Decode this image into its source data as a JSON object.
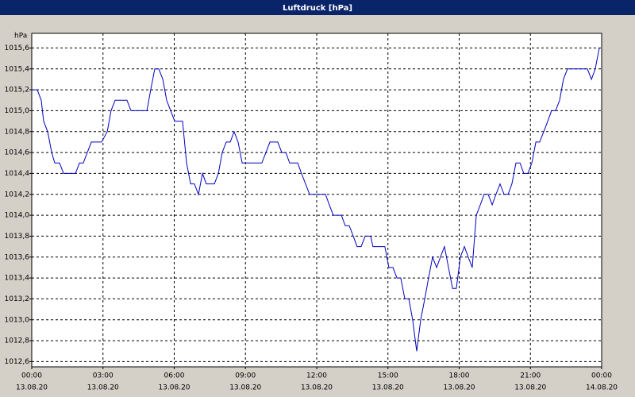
{
  "chart_data": {
    "type": "line",
    "title": "Luftdruck [hPa]",
    "y_label": "hPa",
    "x": [
      0,
      0.23,
      0.4,
      0.5,
      0.67,
      0.84,
      0.97,
      1.17,
      1.34,
      1.84,
      2.01,
      2.17,
      2.34,
      2.51,
      2.94,
      3.18,
      3.34,
      3.51,
      4.01,
      4.18,
      4.85,
      5.01,
      5.18,
      5.35,
      5.52,
      5.68,
      5.85,
      6.02,
      6.35,
      6.52,
      6.69,
      6.85,
      7.02,
      7.19,
      7.35,
      7.69,
      7.86,
      8.02,
      8.19,
      8.36,
      8.52,
      8.69,
      8.86,
      9.69,
      9.86,
      10.03,
      10.36,
      10.53,
      10.7,
      10.86,
      11.2,
      11.36,
      11.53,
      11.7,
      12.37,
      12.53,
      12.7,
      13.04,
      13.2,
      13.37,
      13.54,
      13.7,
      13.87,
      14.04,
      14.27,
      14.37,
      14.87,
      15.04,
      15.21,
      15.38,
      15.54,
      15.71,
      15.88,
      16.04,
      16.21,
      16.38,
      16.55,
      16.71,
      16.88,
      17.05,
      17.21,
      17.38,
      17.55,
      17.72,
      17.88,
      18.05,
      18.22,
      18.38,
      18.55,
      18.72,
      18.89,
      19.05,
      19.22,
      19.39,
      19.55,
      19.72,
      19.89,
      20.06,
      20.22,
      20.39,
      20.56,
      20.72,
      20.89,
      21.06,
      21.23,
      21.39,
      21.56,
      21.73,
      21.89,
      22.06,
      22.23,
      22.39,
      22.56,
      23.4,
      23.57,
      23.73,
      23.9
    ],
    "series": [
      {
        "name": "Luftdruck",
        "color": "#0000c0",
        "values": [
          1015.2,
          1015.2,
          1015.1,
          1014.9,
          1014.8,
          1014.6,
          1014.5,
          1014.5,
          1014.4,
          1014.4,
          1014.5,
          1014.5,
          1014.6,
          1014.7,
          1014.7,
          1014.8,
          1015.0,
          1015.1,
          1015.1,
          1015.0,
          1015.0,
          1015.2,
          1015.4,
          1015.4,
          1015.3,
          1015.1,
          1015.0,
          1014.9,
          1014.9,
          1014.5,
          1014.3,
          1014.3,
          1014.2,
          1014.4,
          1014.3,
          1014.3,
          1014.4,
          1014.6,
          1014.7,
          1014.7,
          1014.8,
          1014.7,
          1014.5,
          1014.5,
          1014.6,
          1014.7,
          1014.7,
          1014.6,
          1014.6,
          1014.5,
          1014.5,
          1014.4,
          1014.3,
          1014.2,
          1014.2,
          1014.1,
          1014.0,
          1014.0,
          1013.9,
          1013.9,
          1013.8,
          1013.7,
          1013.7,
          1013.8,
          1013.8,
          1013.7,
          1013.7,
          1013.5,
          1013.5,
          1013.4,
          1013.4,
          1013.2,
          1013.2,
          1013.0,
          1012.7,
          1013.0,
          1013.2,
          1013.4,
          1013.6,
          1013.5,
          1013.6,
          1013.7,
          1013.5,
          1013.3,
          1013.3,
          1013.6,
          1013.7,
          1013.6,
          1013.5,
          1014.0,
          1014.1,
          1014.2,
          1014.2,
          1014.1,
          1014.2,
          1014.3,
          1014.2,
          1014.2,
          1014.3,
          1014.5,
          1014.5,
          1014.4,
          1014.4,
          1014.5,
          1014.7,
          1014.7,
          1014.8,
          1014.9,
          1015.0,
          1015.0,
          1015.1,
          1015.3,
          1015.4,
          1015.4,
          1015.3,
          1015.4,
          1015.6
        ]
      }
    ],
    "xlim": [
      0,
      24
    ],
    "xticks": [
      {
        "value": 0,
        "label": "00:00"
      },
      {
        "value": 3,
        "label": "03:00"
      },
      {
        "value": 6,
        "label": "06:00"
      },
      {
        "value": 9,
        "label": "09:00"
      },
      {
        "value": 12,
        "label": "12:00"
      },
      {
        "value": 15,
        "label": "15:00"
      },
      {
        "value": 18,
        "label": "18:00"
      },
      {
        "value": 21,
        "label": "21:00"
      },
      {
        "value": 24,
        "label": "00:00"
      }
    ],
    "xtick_dates": [
      "13.08.20",
      "13.08.20",
      "13.08.20",
      "13.08.20",
      "13.08.20",
      "13.08.20",
      "13.08.20",
      "13.08.20",
      "14.08.20"
    ],
    "ylim": [
      1012.55,
      1015.74
    ],
    "yticks": [
      {
        "value": 1012.6,
        "label": "1012,6"
      },
      {
        "value": 1012.8,
        "label": "1012,8"
      },
      {
        "value": 1013.0,
        "label": "1013,0"
      },
      {
        "value": 1013.2,
        "label": "1013,2"
      },
      {
        "value": 1013.4,
        "label": "1013,4"
      },
      {
        "value": 1013.6,
        "label": "1013,6"
      },
      {
        "value": 1013.8,
        "label": "1013,8"
      },
      {
        "value": 1014.0,
        "label": "1014,0"
      },
      {
        "value": 1014.2,
        "label": "1014,2"
      },
      {
        "value": 1014.4,
        "label": "1014,4"
      },
      {
        "value": 1014.6,
        "label": "1014,6"
      },
      {
        "value": 1014.8,
        "label": "1014,8"
      },
      {
        "value": 1015.0,
        "label": "1015,0"
      },
      {
        "value": 1015.2,
        "label": "1015,2"
      },
      {
        "value": 1015.4,
        "label": "1015,4"
      },
      {
        "value": 1015.6,
        "label": "1015,6"
      }
    ],
    "grid": true
  }
}
